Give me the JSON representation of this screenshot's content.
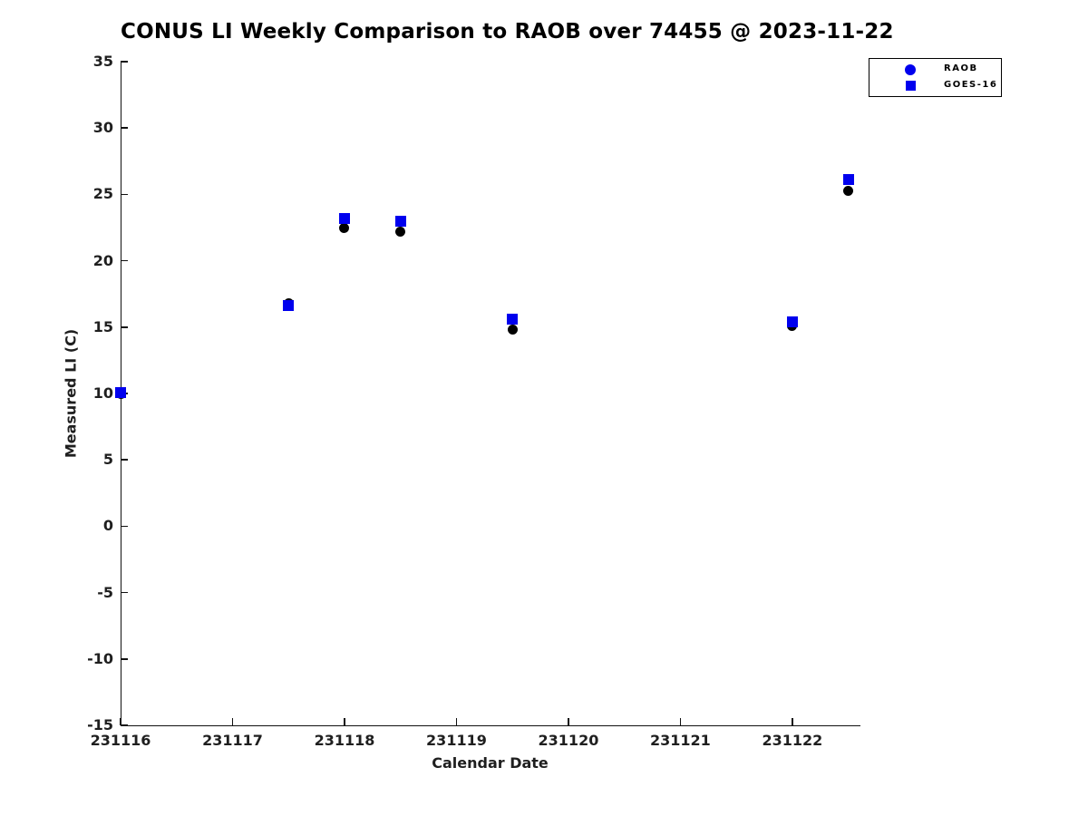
{
  "chart_data": {
    "type": "scatter",
    "title": "CONUS LI Weekly Comparison to RAOB over 74455 @ 2023-11-22",
    "xlabel": "Calendar Date",
    "ylabel": "Measured LI (C)",
    "xlim": [
      231116,
      231122.6
    ],
    "ylim": [
      -15,
      35
    ],
    "x_ticks": [
      231116,
      231117,
      231118,
      231119,
      231120,
      231121,
      231122
    ],
    "y_ticks": [
      35,
      30,
      25,
      20,
      15,
      10,
      5,
      0,
      -5,
      -10,
      -15
    ],
    "grid": false,
    "legend_position": "top-right",
    "colors": {
      "series_blue": "#0000ee",
      "series_black": "#000000",
      "axis": "#111111",
      "text": "#1f1f1f"
    },
    "series": [
      {
        "name": "RAOB",
        "marker": "circle",
        "plot_color": "#000000",
        "legend_color": "#0000ee",
        "points": [
          [
            231116.0,
            10.0
          ],
          [
            231117.5,
            16.8
          ],
          [
            231118.0,
            22.5
          ],
          [
            231118.5,
            22.2
          ],
          [
            231119.5,
            14.8
          ],
          [
            231122.0,
            15.1
          ],
          [
            231122.5,
            25.3
          ]
        ]
      },
      {
        "name": "GOES-16",
        "marker": "square",
        "plot_color": "#0000ee",
        "legend_color": "#0000ee",
        "points": [
          [
            231116.0,
            10.1
          ],
          [
            231117.5,
            16.65
          ],
          [
            231118.0,
            23.2
          ],
          [
            231118.5,
            23.0
          ],
          [
            231119.5,
            15.6
          ],
          [
            231122.0,
            15.4
          ],
          [
            231122.5,
            26.1
          ]
        ]
      }
    ]
  }
}
